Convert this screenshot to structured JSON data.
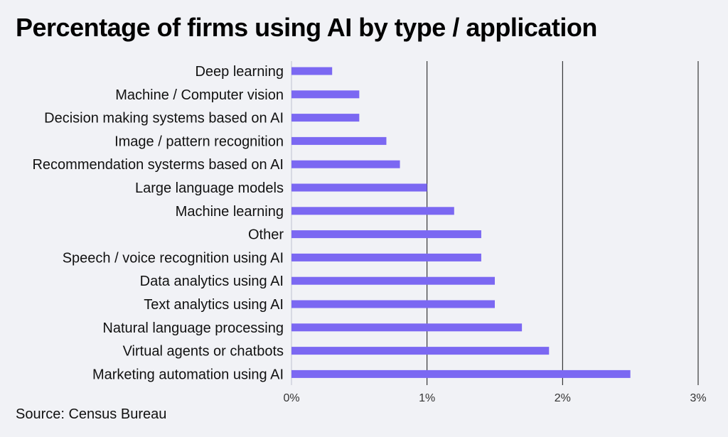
{
  "chart_data": {
    "type": "bar",
    "orientation": "horizontal",
    "title": "Percentage of firms using AI by type / application",
    "categories": [
      "Deep learning",
      "Machine / Computer vision",
      "Decision making systems based on AI",
      "Image / pattern recognition",
      "Recommendation systerms based on AI",
      "Large language models",
      "Machine learning",
      "Other",
      "Speech / voice recognition using AI",
      "Data analytics using AI",
      "Text analytics using AI",
      "Natural language processing",
      "Virtual agents or chatbots",
      "Marketing automation using AI"
    ],
    "values": [
      0.3,
      0.5,
      0.5,
      0.7,
      0.8,
      1.0,
      1.2,
      1.4,
      1.4,
      1.5,
      1.5,
      1.7,
      1.9,
      2.5
    ],
    "unit": "%",
    "xlim": [
      0,
      3
    ],
    "x_ticks": [
      "0%",
      "1%",
      "2%",
      "3%"
    ],
    "grid": "vertical",
    "bar_color": "#7b68f2",
    "source": "Source: Census Bureau"
  }
}
